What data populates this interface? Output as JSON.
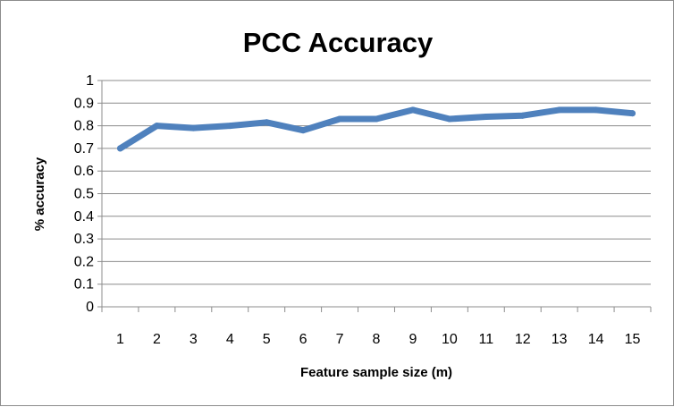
{
  "chart_data": {
    "type": "line",
    "title": "PCC Accuracy",
    "xlabel": "Feature sample size (m)",
    "ylabel": "% accuracy",
    "categories": [
      "1",
      "2",
      "3",
      "4",
      "5",
      "6",
      "7",
      "8",
      "9",
      "10",
      "11",
      "12",
      "13",
      "14",
      "15"
    ],
    "y_ticks": [
      "0",
      "0.1",
      "0.2",
      "0.3",
      "0.4",
      "0.5",
      "0.6",
      "0.7",
      "0.8",
      "0.9",
      "1"
    ],
    "ylim": [
      0,
      1
    ],
    "grid": true,
    "legend": "none",
    "series": [
      {
        "color": "#4f81bd",
        "values": [
          0.7,
          0.8,
          0.79,
          0.8,
          0.815,
          0.78,
          0.83,
          0.83,
          0.87,
          0.83,
          0.84,
          0.845,
          0.87,
          0.87,
          0.855
        ]
      }
    ]
  }
}
